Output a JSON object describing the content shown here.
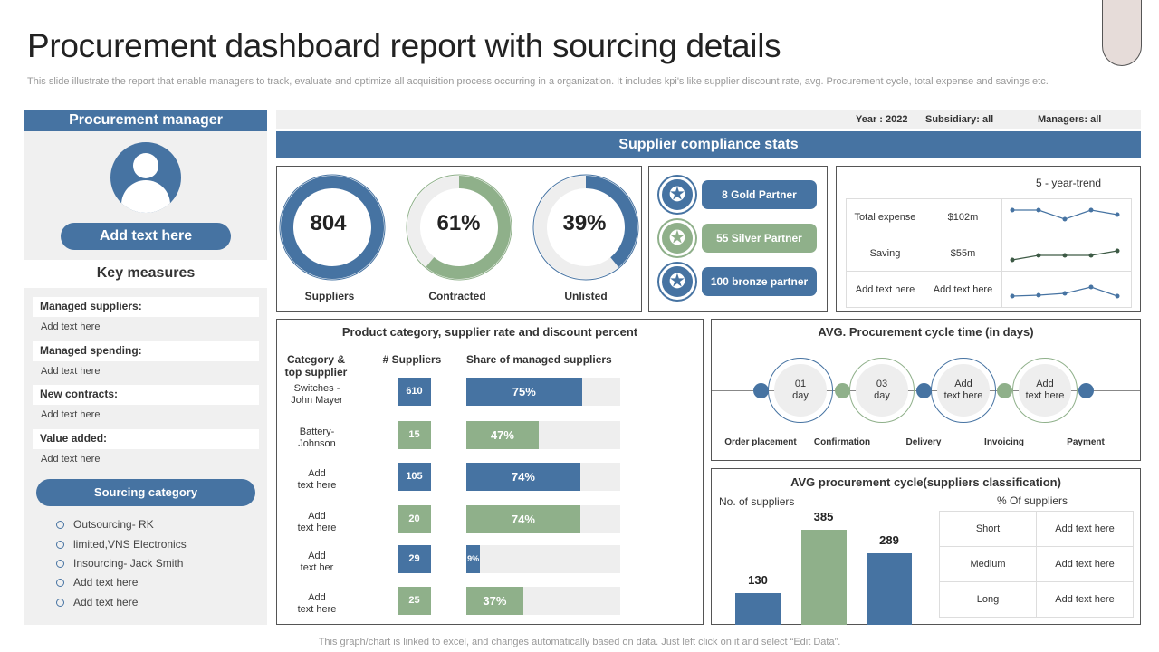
{
  "title": "Procurement dashboard report with sourcing details",
  "subtitle": "This slide illustrate the report that enable managers to track, evaluate and optimize all acquisition process occurring in a organization. It includes kpi's like supplier discount rate, avg. Procurement cycle, total expense and savings etc.",
  "colors": {
    "blue": "#4673a2",
    "green": "#8fb08a"
  },
  "left": {
    "header": "Procurement manager",
    "avatar_icon": "user-icon",
    "add_text": "Add text here",
    "key_measures_title": "Key measures",
    "measures": [
      {
        "label": "Managed suppliers:",
        "value": "Add text here"
      },
      {
        "label": "Managed spending:",
        "value": "Add text here"
      },
      {
        "label": "New contracts:",
        "value": "Add text here"
      },
      {
        "label": "Value added:",
        "value": "Add text here"
      }
    ],
    "sourcing_title": "Sourcing category",
    "sourcing": [
      "Outsourcing- RK",
      "limited,VNS Electronics",
      "Insourcing- Jack Smith",
      "Add text here",
      "Add text here"
    ]
  },
  "filters": {
    "year": "Year : 2022",
    "subsidiary": "Subsidiary: all",
    "managers": "Managers: all"
  },
  "compliance_title": "Supplier compliance stats",
  "donuts": [
    {
      "value": "804",
      "label": "Suppliers",
      "fraction": 1.0,
      "color": "#4673a2"
    },
    {
      "value": "61%",
      "label": "Contracted",
      "fraction": 0.61,
      "color": "#8fb08a"
    },
    {
      "value": "39%",
      "label": "Unlisted",
      "fraction": 0.39,
      "color": "#4673a2"
    }
  ],
  "partners": [
    {
      "label": "8 Gold  Partner",
      "color": "#4673a2"
    },
    {
      "label": "55 Silver Partner",
      "color": "#8fb08a"
    },
    {
      "label": "100  bronze partner",
      "color": "#4673a2"
    }
  ],
  "trend": {
    "title": "5 - year-trend",
    "rows": [
      {
        "name": "Total expense",
        "value": "$102m",
        "series": [
          5,
          5,
          3,
          5,
          4
        ]
      },
      {
        "name": "Saving",
        "value": "$55m",
        "series": [
          2,
          3,
          3,
          3,
          4
        ]
      },
      {
        "name": "Add text here",
        "value": "Add text here",
        "series": [
          2,
          2.2,
          2.6,
          4,
          2
        ]
      }
    ]
  },
  "product": {
    "title": "Product category, supplier rate and discount  percent",
    "col1": "Category &\ntop supplier",
    "col2": "# Suppliers",
    "col3": "Share of managed suppliers",
    "rows": [
      {
        "cat": "Switches -\nJohn Mayer",
        "n": "610",
        "share": 75,
        "share_label": "75%"
      },
      {
        "cat": "Battery-\nJohnson",
        "n": "15",
        "share": 47,
        "share_label": "47%"
      },
      {
        "cat": "Add\ntext here",
        "n": "105",
        "share": 74,
        "share_label": "74%"
      },
      {
        "cat": "Add\ntext here",
        "n": "20",
        "share": 74,
        "share_label": "74%"
      },
      {
        "cat": "Add\ntext her",
        "n": "29",
        "share": 9,
        "share_label": "9%"
      },
      {
        "cat": "Add\ntext here",
        "n": "25",
        "share": 37,
        "share_label": "37%"
      }
    ]
  },
  "cycle": {
    "title": "AVG. Procurement cycle time (in days)",
    "steps": [
      "01\nday",
      "03\nday",
      "Add\ntext here",
      "Add\ntext here"
    ],
    "labels": [
      "Order placement",
      "Confirmation",
      "Delivery",
      "Invoicing",
      "Payment"
    ]
  },
  "classif": {
    "title": "AVG procurement cycle(suppliers  classification)",
    "left_label": "No. of suppliers",
    "right_label": "% Of suppliers",
    "chart_data": {
      "type": "bar",
      "categories": [
        "",
        "",
        ""
      ],
      "values": [
        130,
        385,
        289
      ],
      "colors": [
        "#4673a2",
        "#8fb08a",
        "#4673a2"
      ]
    },
    "rows": [
      {
        "name": "Short",
        "value": "Add text here"
      },
      {
        "name": "Medium",
        "value": "Add text here"
      },
      {
        "name": "Long",
        "value": "Add text here"
      }
    ]
  },
  "footer": "This graph/chart is linked to excel,  and changes automatically based on data. Just left click on it and select “Edit Data”."
}
